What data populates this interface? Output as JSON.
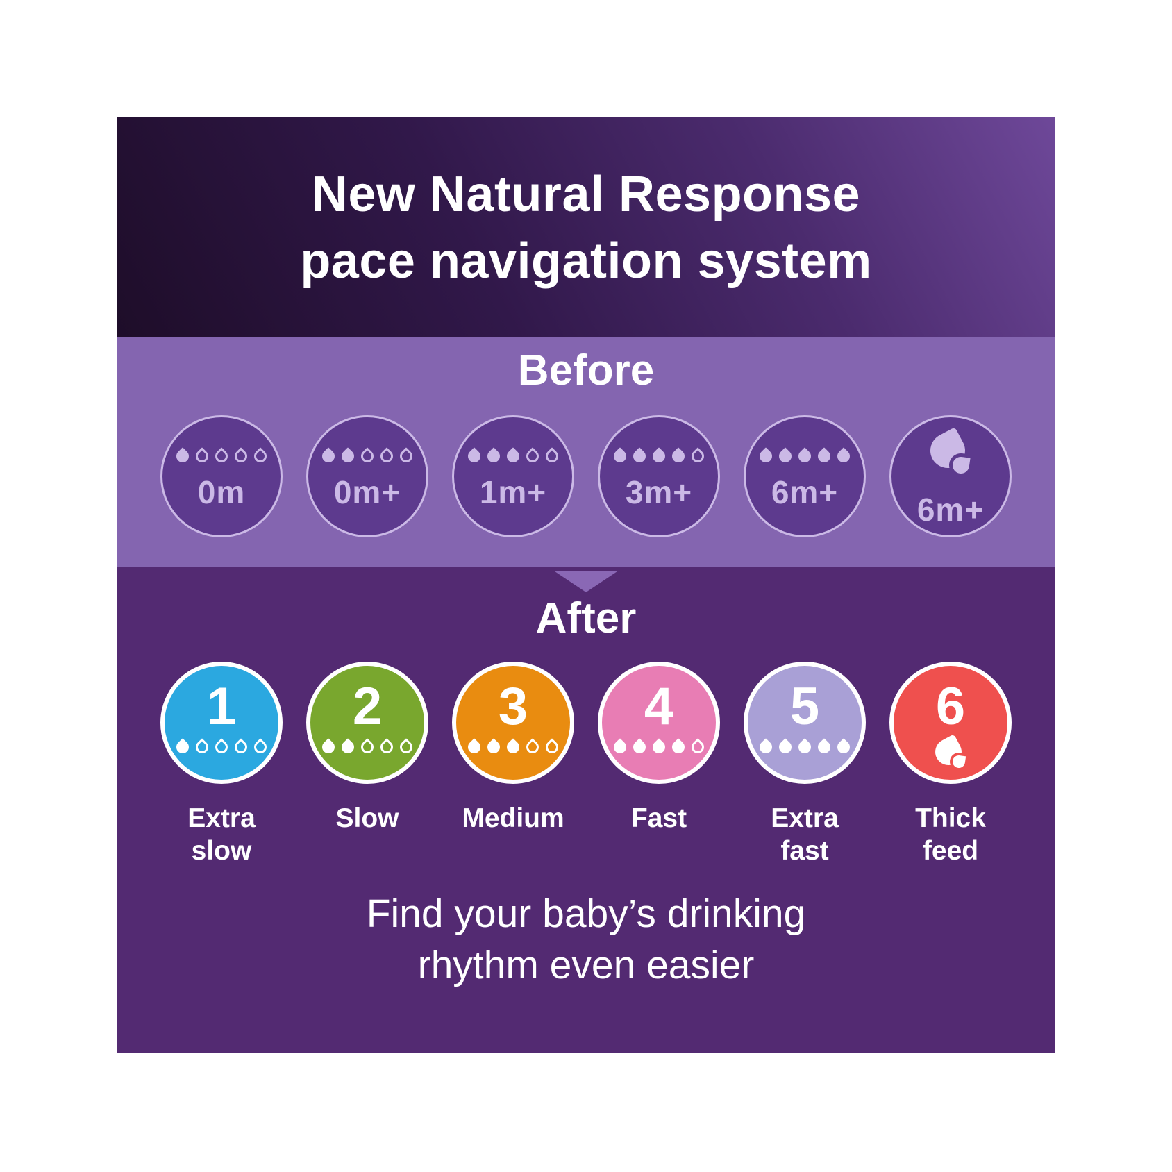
{
  "title": {
    "line1": "New Natural Response",
    "line2": "pace navigation system"
  },
  "before": {
    "heading": "Before",
    "items": [
      {
        "age": "0m",
        "icon": "droplet-meter",
        "drops": 1,
        "drops_total": 5
      },
      {
        "age": "0m+",
        "icon": "droplet-meter",
        "drops": 2,
        "drops_total": 5
      },
      {
        "age": "1m+",
        "icon": "droplet-meter",
        "drops": 3,
        "drops_total": 5
      },
      {
        "age": "3m+",
        "icon": "droplet-meter",
        "drops": 4,
        "drops_total": 5
      },
      {
        "age": "6m+",
        "icon": "droplet-meter",
        "drops": 5,
        "drops_total": 5
      },
      {
        "age": "6m+",
        "icon": "thick-feed-drop-icon"
      }
    ]
  },
  "after": {
    "heading": "After",
    "items": [
      {
        "number": "1",
        "label": "Extra slow",
        "icon": "droplet-meter",
        "drops": 1,
        "drops_total": 5,
        "color": "#2ba8e0"
      },
      {
        "number": "2",
        "label": "Slow",
        "icon": "droplet-meter",
        "drops": 2,
        "drops_total": 5,
        "color": "#79a72e"
      },
      {
        "number": "3",
        "label": "Medium",
        "icon": "droplet-meter",
        "drops": 3,
        "drops_total": 5,
        "color": "#e98c10"
      },
      {
        "number": "4",
        "label": "Fast",
        "icon": "droplet-meter",
        "drops": 4,
        "drops_total": 5,
        "color": "#e87db4"
      },
      {
        "number": "5",
        "label": "Extra fast",
        "icon": "droplet-meter",
        "drops": 5,
        "drops_total": 5,
        "color": "#a9a0d6"
      },
      {
        "number": "6",
        "label": "Thick feed",
        "icon": "thick-feed-drop-icon",
        "color": "#ef504e"
      }
    ]
  },
  "footer": {
    "line1": "Find your baby’s drinking",
    "line2": "rhythm even easier"
  },
  "colors": {
    "page_background": "#ffffff",
    "header_gradient_dark": "#1e0d29",
    "header_gradient_light": "#6e4899",
    "before_background": "#8465b0",
    "before_circle_fill": "#5d3a8e",
    "before_accent": "#cbb9e6",
    "after_background": "#532a72",
    "divider_triangle": "#8a68b5",
    "text": "#ffffff"
  }
}
